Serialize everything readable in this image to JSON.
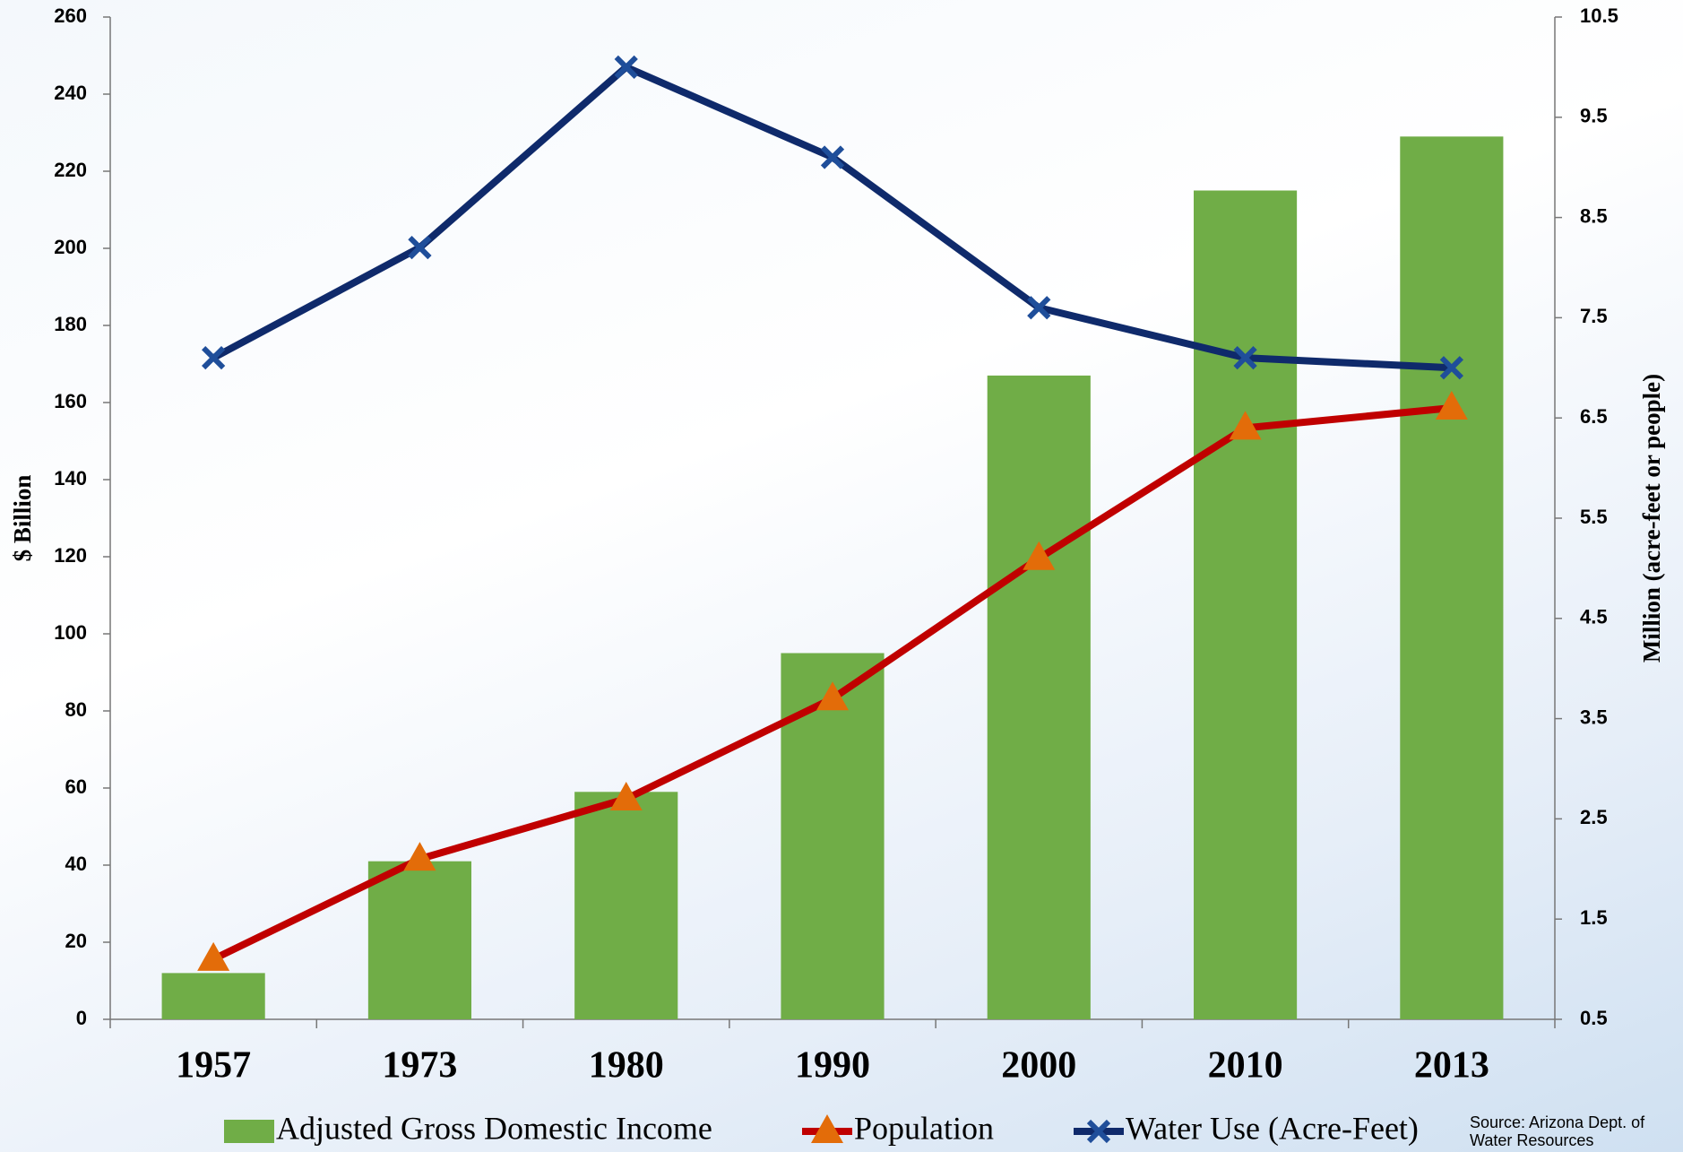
{
  "chart_data": {
    "type": "bar",
    "categories": [
      "1957",
      "1973",
      "1980",
      "1990",
      "2000",
      "2010",
      "2013"
    ],
    "series": [
      {
        "name": "Adjusted Gross Domestic Income",
        "type": "bar",
        "color": "#70ad47",
        "values": [
          12,
          41,
          59,
          95,
          167,
          215,
          229
        ]
      },
      {
        "name": "Population",
        "type": "line",
        "axis": "y2",
        "color": "#c00000",
        "marker": "triangle",
        "marker_color": "#e36c09",
        "values": [
          1.1,
          2.1,
          2.7,
          3.7,
          5.1,
          6.4,
          6.6
        ]
      },
      {
        "name": "Water Use (Acre-Feet)",
        "type": "line",
        "axis": "y2",
        "color": "#0f2a6b",
        "marker": "x",
        "marker_color": "#1f4e9a",
        "values": [
          7.1,
          8.2,
          10.0,
          9.1,
          7.6,
          7.1,
          7.0
        ]
      }
    ],
    "ylabel": "$ Billion",
    "y2label": "Million (acre-feet or people)",
    "ylim": [
      0,
      260
    ],
    "yticks": [
      0,
      20,
      40,
      60,
      80,
      100,
      120,
      140,
      160,
      180,
      200,
      220,
      240,
      260
    ],
    "y2lim": [
      0.5,
      10.5
    ],
    "y2ticks": [
      0.5,
      1.5,
      2.5,
      3.5,
      4.5,
      5.5,
      6.5,
      7.5,
      8.5,
      9.5,
      10.5
    ],
    "legend": "bottom",
    "source": "Source: Arizona Dept. of Water Resources"
  }
}
